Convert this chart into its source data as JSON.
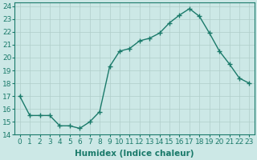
{
  "x": [
    0,
    1,
    2,
    3,
    4,
    5,
    6,
    7,
    8,
    9,
    10,
    11,
    12,
    13,
    14,
    15,
    16,
    17,
    18,
    19,
    20,
    21,
    22,
    23
  ],
  "y": [
    17.0,
    15.5,
    15.5,
    15.5,
    14.7,
    14.7,
    14.5,
    15.0,
    15.8,
    19.3,
    20.5,
    20.7,
    21.3,
    21.5,
    21.9,
    22.7,
    23.3,
    23.8,
    23.2,
    21.9,
    20.5,
    19.5,
    18.4,
    18.0
  ],
  "line_color": "#1a7a6a",
  "marker": "+",
  "marker_size": 4,
  "marker_linewidth": 1.0,
  "bg_color": "#cce8e6",
  "grid_color": "#b0ceca",
  "xlabel": "Humidex (Indice chaleur)",
  "ylabel": "",
  "xlim": [
    -0.5,
    23.5
  ],
  "ylim": [
    14,
    24.3
  ],
  "yticks": [
    14,
    15,
    16,
    17,
    18,
    19,
    20,
    21,
    22,
    23,
    24
  ],
  "xticks": [
    0,
    1,
    2,
    3,
    4,
    5,
    6,
    7,
    8,
    9,
    10,
    11,
    12,
    13,
    14,
    15,
    16,
    17,
    18,
    19,
    20,
    21,
    22,
    23
  ],
  "xlabel_fontsize": 7.5,
  "tick_fontsize": 6.5,
  "line_width": 1.0
}
